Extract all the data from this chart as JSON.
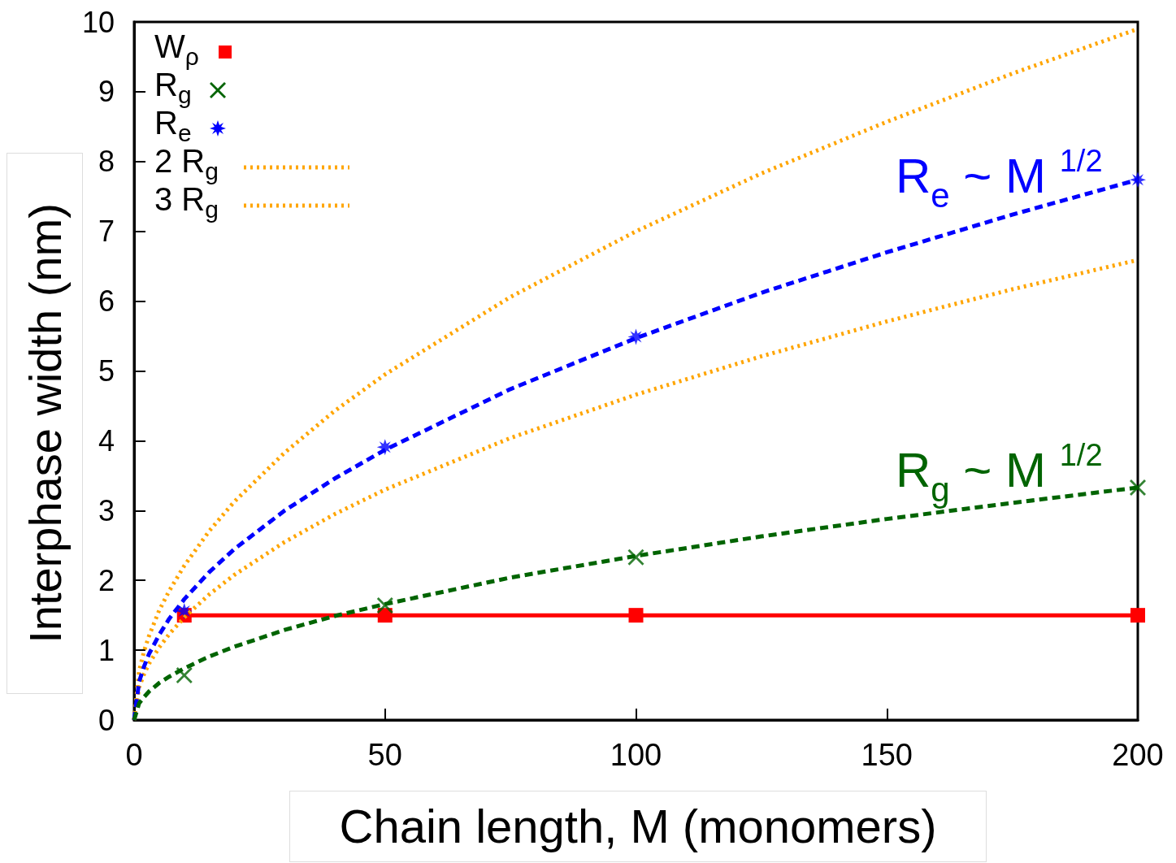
{
  "chart_data": {
    "type": "line",
    "xlabel": "Chain length, M (monomers)",
    "ylabel": "Interphase width (nm)",
    "xlim": [
      0,
      200
    ],
    "xticks": [
      0,
      50,
      100,
      150,
      200
    ],
    "ylim": [
      0,
      10
    ],
    "yticks": [
      0,
      1,
      2,
      3,
      4,
      5,
      6,
      7,
      8,
      9,
      10
    ],
    "grid": false,
    "legend": "top left",
    "series": [
      {
        "name": "W$_{ρ}$",
        "color": "#ff0000",
        "marker": "square",
        "line_style": "solid",
        "x": [
          10,
          50,
          100,
          200
        ],
        "values": [
          1.5,
          1.5,
          1.5,
          1.5
        ]
      },
      {
        "name": "R$_{g}$",
        "type": "scatter",
        "color": "#006400",
        "marker": "cross",
        "x": [
          10,
          50,
          100,
          200
        ],
        "values": [
          0.64,
          1.64,
          2.33,
          3.33
        ]
      },
      {
        "name": "R$_{e}$",
        "type": "scatter",
        "color": "#0000ff",
        "marker": "star",
        "x": [
          10,
          50,
          100,
          200
        ],
        "values": [
          1.56,
          3.91,
          5.49,
          7.74
        ]
      },
      {
        "name": "2 R$_{g}$",
        "color": "#ffa500",
        "marker": "none",
        "line_style": "dotted",
        "x": [
          0,
          1,
          2,
          3,
          5,
          7,
          10,
          15,
          20,
          30,
          40,
          50,
          75,
          100,
          125,
          150,
          175,
          200
        ],
        "values": [
          0,
          0.47,
          0.66,
          0.81,
          1.04,
          1.23,
          1.47,
          1.8,
          2.08,
          2.55,
          2.95,
          3.3,
          4.04,
          4.66,
          5.21,
          5.71,
          6.17,
          6.59
        ]
      },
      {
        "name": "3 R$_{g}$",
        "color": "#ffa500",
        "marker": "none",
        "line_style": "dotted",
        "x": [
          0,
          1,
          2,
          3,
          5,
          7,
          10,
          15,
          20,
          30,
          40,
          50,
          75,
          100,
          125,
          150,
          175,
          200
        ],
        "values": [
          0,
          0.7,
          0.99,
          1.21,
          1.57,
          1.85,
          2.21,
          2.71,
          3.13,
          3.83,
          4.43,
          4.95,
          6.06,
          7.0,
          7.83,
          8.57,
          9.26,
          9.9
        ]
      },
      {
        "color": "#0000ff",
        "marker": "none",
        "line_style": "dashed",
        "x": [
          0,
          1,
          2,
          3,
          5,
          7,
          10,
          15,
          20,
          30,
          40,
          50,
          75,
          100,
          125,
          150,
          175,
          200
        ],
        "values": [
          0,
          0.55,
          0.77,
          0.95,
          1.22,
          1.45,
          1.73,
          2.12,
          2.45,
          3.0,
          3.46,
          3.87,
          4.74,
          5.47,
          6.12,
          6.7,
          7.24,
          7.74
        ]
      },
      {
        "color": "#006400",
        "marker": "none",
        "line_style": "dashed",
        "x": [
          0,
          1,
          2,
          3,
          5,
          7,
          10,
          15,
          20,
          30,
          40,
          50,
          75,
          100,
          125,
          150,
          175,
          200
        ],
        "values": [
          0,
          0.24,
          0.33,
          0.41,
          0.53,
          0.62,
          0.74,
          0.91,
          1.05,
          1.29,
          1.49,
          1.66,
          2.04,
          2.35,
          2.63,
          2.88,
          3.11,
          3.33
        ]
      }
    ],
    "annotations": [
      "R$_{e}$ ~ M $^{1/2}$",
      "R$_{g}$ ~ M $^{1/2}$"
    ]
  }
}
